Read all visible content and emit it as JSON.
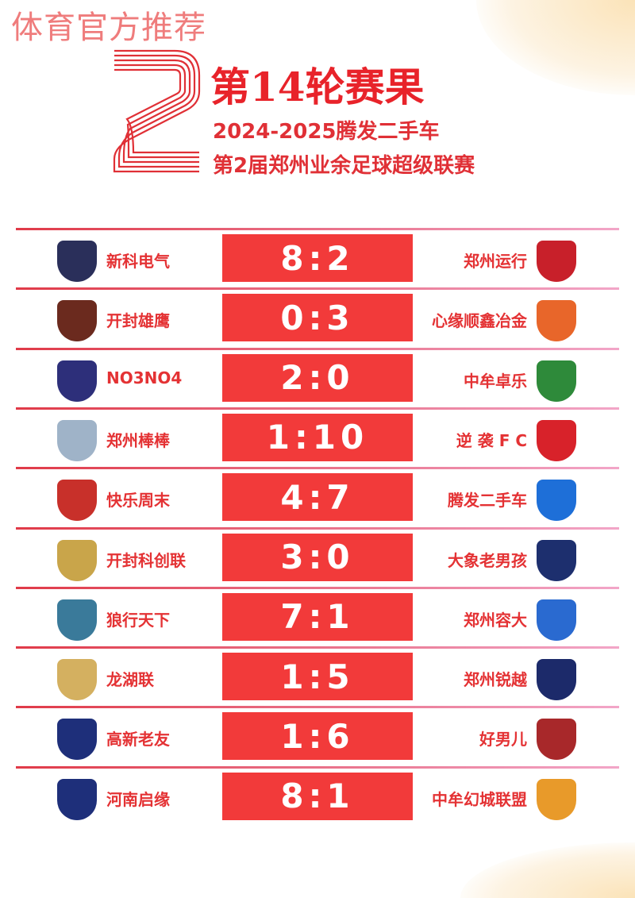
{
  "watermark": "体育官方推荐",
  "header": {
    "big_number": "2",
    "title": "第14轮赛果",
    "subtitle1": "2024-2025腾发二手车",
    "subtitle2": "第2届郑州业余足球超级联赛"
  },
  "colors": {
    "accent": "#e8232a",
    "score_bg": "#f23a3a"
  },
  "matches": [
    {
      "home": "新科电气",
      "home_score": "8",
      "away_score": "2",
      "away": "郑州运行",
      "home_logo_color": "#2a2f5a",
      "away_logo_color": "#c8202a"
    },
    {
      "home": "开封雄鹰",
      "home_score": "0",
      "away_score": "3",
      "away": "心缘顺鑫冶金",
      "home_logo_color": "#6b2a1e",
      "away_logo_color": "#e8662a"
    },
    {
      "home": "NO3NO4",
      "home_score": "2",
      "away_score": "0",
      "away": "中牟卓乐",
      "home_logo_color": "#2d2f7a",
      "away_logo_color": "#2e8a3a"
    },
    {
      "home": "郑州棒棒",
      "home_score": "1",
      "away_score": "10",
      "away": "逆 袭 F C",
      "home_logo_color": "#9fb3c8",
      "away_logo_color": "#d8222a"
    },
    {
      "home": "快乐周末",
      "home_score": "4",
      "away_score": "7",
      "away": "腾发二手车",
      "home_logo_color": "#c8302a",
      "away_logo_color": "#1e6fd8"
    },
    {
      "home": "开封科创联",
      "home_score": "3",
      "away_score": "0",
      "away": "大象老男孩",
      "home_logo_color": "#c9a54a",
      "away_logo_color": "#1d2f6e"
    },
    {
      "home": "狼行天下",
      "home_score": "7",
      "away_score": "1",
      "away": "郑州容大",
      "home_logo_color": "#3a7a9a",
      "away_logo_color": "#2a6ad0"
    },
    {
      "home": "龙湖联",
      "home_score": "1",
      "away_score": "5",
      "away": "郑州锐越",
      "home_logo_color": "#d4b060",
      "away_logo_color": "#1c2a6a"
    },
    {
      "home": "高新老友",
      "home_score": "1",
      "away_score": "6",
      "away": "好男儿",
      "home_logo_color": "#1e2f7a",
      "away_logo_color": "#a8282a"
    },
    {
      "home": "河南启缘",
      "home_score": "8",
      "away_score": "1",
      "away": "中牟幻城联盟",
      "home_logo_color": "#1e2f7a",
      "away_logo_color": "#e89a2a"
    }
  ]
}
